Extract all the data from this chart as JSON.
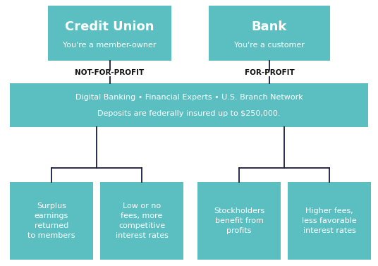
{
  "bg_color": "#ffffff",
  "box_color": "#5bbfc2",
  "text_color_white": "#ffffff",
  "text_color_dark": "#111111",
  "line_color": "#1a1a3e",
  "credit_union_title": "Credit Union",
  "credit_union_sub": "You're a member-owner",
  "bank_title": "Bank",
  "bank_sub": "You're a customer",
  "label_left": "NOT-FOR-PROFIT",
  "label_right": "FOR-PROFIT",
  "shared_line1": "Digital Banking • Financial Experts • U.S. Branch Network",
  "shared_line2": "Deposits are federally insured up to $250,000.",
  "leaf1": "Surplus\nearnings\nreturned\nto members",
  "leaf2": "Low or no\nfees, more\ncompetitive\ninterest rates",
  "leaf3": "Stockholders\nbenefit from\nprofits",
  "leaf4": "Higher fees,\nless favorable\ninterest rates",
  "fig_w": 5.36,
  "fig_h": 3.77,
  "dpi": 100
}
